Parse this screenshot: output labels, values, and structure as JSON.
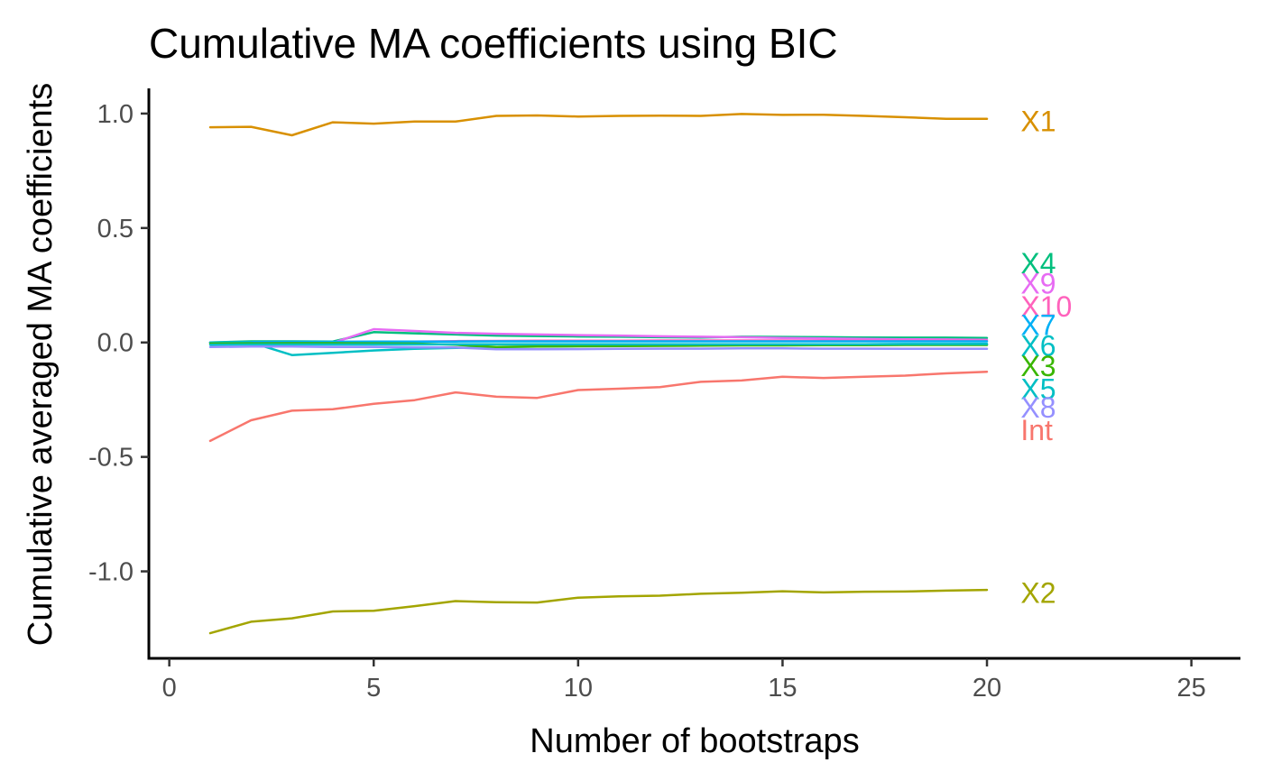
{
  "chart_data": {
    "type": "line",
    "title": "Cumulative MA coefficients using  BIC",
    "xlabel": "Number of bootstraps",
    "ylabel": "Cumulative averaged MA coefficients",
    "xlim": [
      -0.5,
      26.2
    ],
    "ylim": [
      -1.38,
      1.11
    ],
    "x_ticks": [
      0,
      5,
      10,
      15,
      20,
      25
    ],
    "y_ticks": [
      1.0,
      0.5,
      0.0,
      -0.5,
      -1.0
    ],
    "y_tick_labels": [
      "1.0",
      "0.5",
      "0.0",
      "-0.5",
      "-1.0"
    ],
    "grid": false,
    "legend": "none",
    "x": [
      1,
      2,
      3,
      4,
      5,
      6,
      7,
      8,
      9,
      10,
      11,
      12,
      13,
      14,
      15,
      16,
      17,
      18,
      19,
      20
    ],
    "series": [
      {
        "name": "X1",
        "color": "#D89000",
        "label_y": 0.97,
        "values": [
          0.94,
          0.942,
          0.905,
          0.962,
          0.956,
          0.965,
          0.965,
          0.99,
          0.992,
          0.987,
          0.99,
          0.991,
          0.99,
          0.998,
          0.994,
          0.995,
          0.99,
          0.984,
          0.977,
          0.977
        ]
      },
      {
        "name": "X2",
        "color": "#A3A500",
        "label_y": -1.09,
        "values": [
          -1.27,
          -1.22,
          -1.205,
          -1.175,
          -1.172,
          -1.152,
          -1.13,
          -1.135,
          -1.136,
          -1.115,
          -1.109,
          -1.106,
          -1.098,
          -1.093,
          -1.087,
          -1.092,
          -1.089,
          -1.088,
          -1.084,
          -1.081
        ]
      },
      {
        "name": "X4",
        "color": "#00BF7D",
        "label_y": 0.35,
        "values": [
          0.0,
          0.005,
          0.005,
          0.004,
          0.045,
          0.04,
          0.035,
          0.03,
          0.028,
          0.026,
          0.025,
          0.023,
          0.022,
          0.025,
          0.024,
          0.023,
          0.022,
          0.021,
          0.021,
          0.02
        ]
      },
      {
        "name": "X9",
        "color": "#E76BF3",
        "label_y": 0.26,
        "values": [
          0.0,
          -0.003,
          -0.003,
          -0.002,
          0.058,
          0.05,
          0.042,
          0.038,
          0.035,
          0.032,
          0.03,
          0.027,
          0.025,
          0.023,
          0.02,
          0.018,
          0.016,
          0.014,
          0.013,
          0.012
        ]
      },
      {
        "name": "X10",
        "color": "#FF62BC",
        "label_y": 0.16,
        "values": [
          0.0,
          0.0,
          0.0,
          0.002,
          0.002,
          0.004,
          0.006,
          0.007,
          0.008,
          0.008,
          0.008,
          0.009,
          0.009,
          0.009,
          0.009,
          0.008,
          0.008,
          0.008,
          0.008,
          0.008
        ]
      },
      {
        "name": "X7",
        "color": "#00B0F6",
        "label_y": 0.08,
        "values": [
          0.0,
          0.002,
          0.003,
          0.003,
          0.004,
          0.004,
          0.004,
          0.005,
          0.005,
          0.005,
          0.005,
          0.005,
          0.005,
          0.005,
          0.005,
          0.005,
          0.005,
          0.005,
          0.005,
          0.005
        ]
      },
      {
        "name": "X6",
        "color": "#00BFC4",
        "label_y": -0.01,
        "values": [
          0.0,
          0.0,
          -0.055,
          -0.045,
          -0.035,
          -0.028,
          -0.024,
          -0.02,
          -0.018,
          -0.016,
          -0.014,
          -0.012,
          -0.011,
          -0.01,
          -0.009,
          -0.008,
          -0.008,
          -0.007,
          -0.007,
          -0.006
        ]
      },
      {
        "name": "X3",
        "color": "#39B600",
        "label_y": -0.1,
        "values": [
          -0.005,
          -0.004,
          -0.003,
          -0.003,
          -0.004,
          -0.005,
          -0.01,
          -0.02,
          -0.018,
          -0.017,
          -0.016,
          -0.015,
          -0.014,
          -0.013,
          -0.013,
          -0.012,
          -0.012,
          -0.011,
          -0.011,
          -0.011
        ]
      },
      {
        "name": "X5",
        "color": "#00BFC4",
        "label_y": -0.2,
        "values": [
          -0.01,
          -0.009,
          -0.009,
          -0.009,
          -0.009,
          -0.009,
          -0.008,
          -0.008,
          -0.008,
          -0.008,
          -0.008,
          -0.008,
          -0.008,
          -0.008,
          -0.008,
          -0.008,
          -0.008,
          -0.007,
          -0.007,
          -0.007
        ]
      },
      {
        "name": "X8",
        "color": "#9590FF",
        "label_y": -0.28,
        "values": [
          -0.02,
          -0.018,
          -0.018,
          -0.02,
          -0.02,
          -0.022,
          -0.022,
          -0.03,
          -0.03,
          -0.029,
          -0.028,
          -0.027,
          -0.027,
          -0.026,
          -0.026,
          -0.027,
          -0.027,
          -0.028,
          -0.028,
          -0.028
        ]
      },
      {
        "name": "Int",
        "color": "#F8766D",
        "label_y": -0.38,
        "values": [
          -0.43,
          -0.34,
          -0.298,
          -0.292,
          -0.268,
          -0.252,
          -0.218,
          -0.237,
          -0.242,
          -0.208,
          -0.202,
          -0.195,
          -0.172,
          -0.166,
          -0.15,
          -0.155,
          -0.15,
          -0.145,
          -0.135,
          -0.128
        ]
      }
    ]
  }
}
